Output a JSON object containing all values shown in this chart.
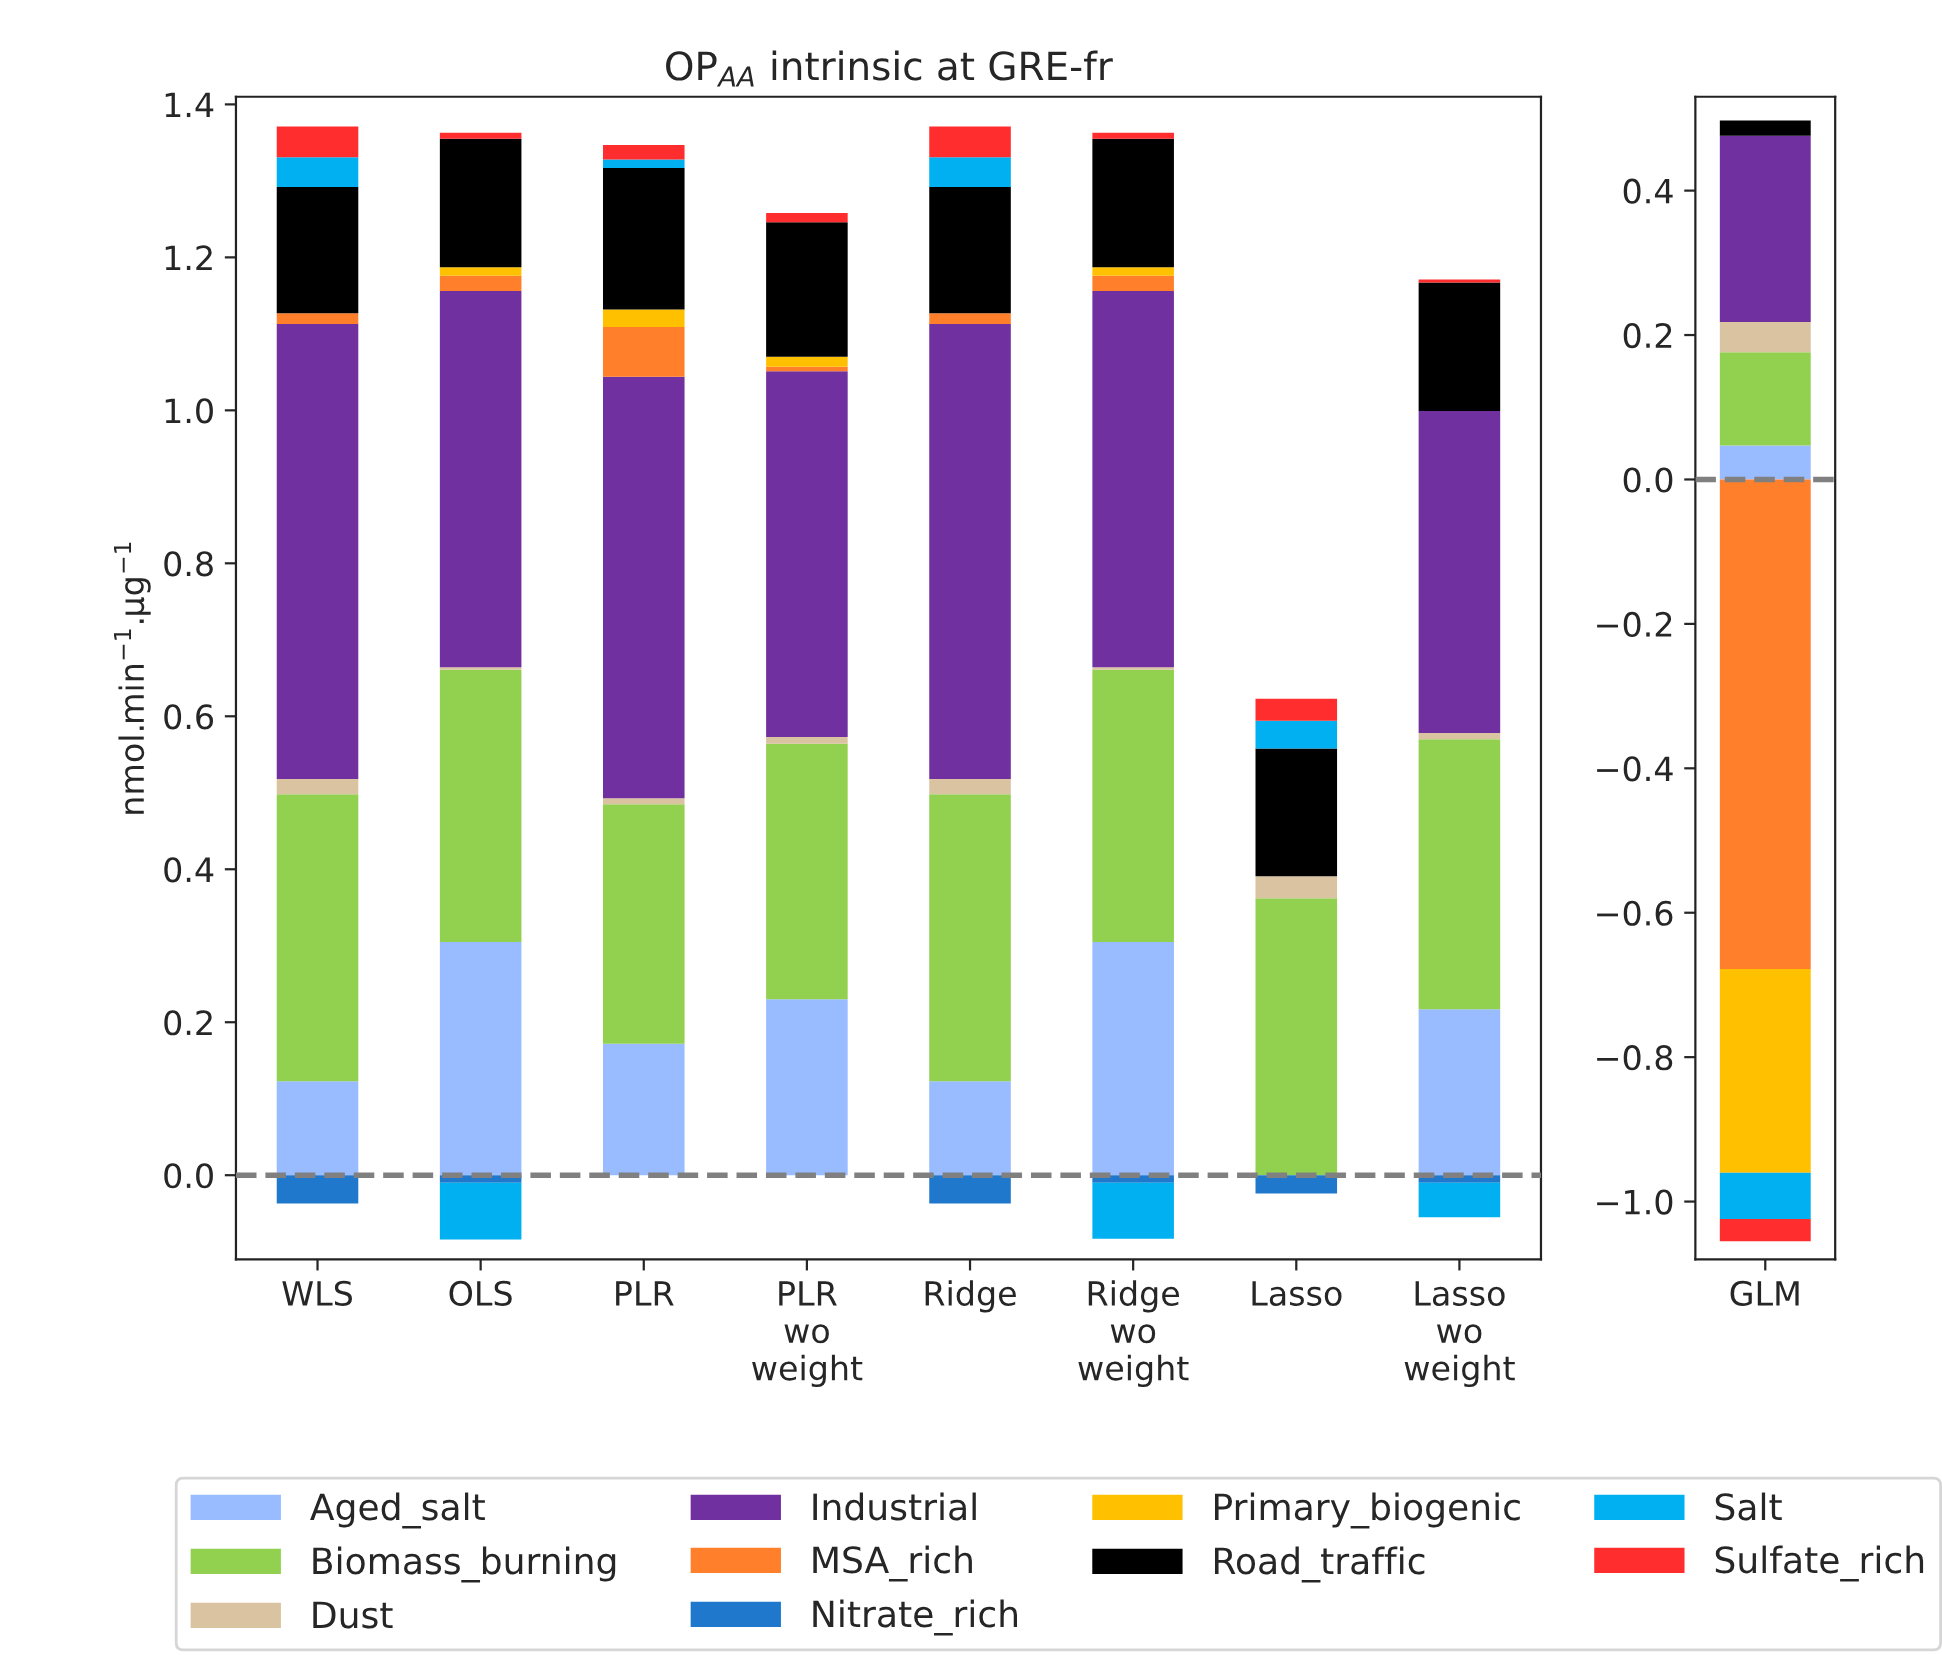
{
  "chart_data": [
    {
      "type": "bar",
      "stacked": true,
      "title": "OP$_{AA}$ intrinsic at GRE-fr",
      "ylabel": "nmol.min$^{−1}$.µg$^{−1}$",
      "categories": [
        "WLS",
        "OLS",
        "PLR",
        "PLR\nwo\nweight",
        "Ridge",
        "Ridge\nwo\nweight",
        "Lasso",
        "Lasso\nwo\nweight"
      ],
      "ylim": [
        -0.11,
        1.41
      ],
      "yticks": [
        {
          "value": 0.0,
          "label": "0.0"
        },
        {
          "value": 0.2,
          "label": "0.2"
        },
        {
          "value": 0.4,
          "label": "0.4"
        },
        {
          "value": 0.6,
          "label": "0.6"
        },
        {
          "value": 0.8,
          "label": "0.8"
        },
        {
          "value": 1.0,
          "label": "1.0"
        },
        {
          "value": 1.2,
          "label": "1.2"
        },
        {
          "value": 1.4,
          "label": "1.4"
        }
      ],
      "grid": false,
      "legend": "bottom",
      "ref_lines": [
        {
          "axis": "y",
          "value": 0,
          "color": "#808080",
          "line_style": "dashed"
        }
      ],
      "series": [
        {
          "name": "Aged_salt",
          "color": "#99bbff",
          "values": [
            0.123,
            0.305,
            0.172,
            0.23,
            0.123,
            0.305,
            0,
            0.217
          ]
        },
        {
          "name": "Biomass_burning",
          "color": "#92d050",
          "values": [
            0.375,
            0.356,
            0.313,
            0.334,
            0.375,
            0.356,
            0.362,
            0.353
          ]
        },
        {
          "name": "Dust",
          "color": "#d9c3a0",
          "values": [
            0.02,
            0.003,
            0.008,
            0.009,
            0.02,
            0.003,
            0.029,
            0.008
          ]
        },
        {
          "name": "Industrial",
          "color": "#7030a0",
          "values": [
            0.595,
            0.492,
            0.551,
            0.478,
            0.595,
            0.492,
            0,
            0.421
          ]
        },
        {
          "name": "MSA_rich",
          "color": "#ff7f2a",
          "values": [
            0.014,
            0.02,
            0.065,
            0.006,
            0.014,
            0.02,
            0,
            0
          ]
        },
        {
          "name": "Nitrate_rich",
          "color": "#2078cc",
          "values": [
            -0.037,
            -0.01,
            0,
            0,
            -0.037,
            -0.01,
            -0.024,
            -0.01
          ]
        },
        {
          "name": "Primary_biogenic",
          "color": "#ffc000",
          "values": [
            0,
            0.011,
            0.023,
            0.013,
            0,
            0.011,
            0,
            0
          ]
        },
        {
          "name": "Road_traffic",
          "color": "#000000",
          "values": [
            0.165,
            0.168,
            0.185,
            0.176,
            0.165,
            0.168,
            0.167,
            0.168
          ]
        },
        {
          "name": "Salt",
          "color": "#00b0f0",
          "values": [
            0.039,
            -0.074,
            0.011,
            0,
            0.039,
            -0.073,
            0.036,
            -0.045
          ]
        },
        {
          "name": "Sulfate_rich",
          "color": "#ff2d2d",
          "values": [
            0.04,
            0.008,
            0.019,
            0.012,
            0.04,
            0.008,
            0.029,
            0.004
          ]
        }
      ]
    },
    {
      "type": "bar",
      "stacked": true,
      "categories": [
        "GLM"
      ],
      "ylim": [
        -1.08,
        0.53
      ],
      "yticks": [
        {
          "value": -1.0,
          "label": "−1.0"
        },
        {
          "value": -0.8,
          "label": "−0.8"
        },
        {
          "value": -0.6,
          "label": "−0.6"
        },
        {
          "value": -0.4,
          "label": "−0.4"
        },
        {
          "value": -0.2,
          "label": "−0.2"
        },
        {
          "value": 0.0,
          "label": "0.0"
        },
        {
          "value": 0.2,
          "label": "0.2"
        },
        {
          "value": 0.4,
          "label": "0.4"
        }
      ],
      "grid": false,
      "ref_lines": [
        {
          "axis": "y",
          "value": 0,
          "color": "#808080",
          "line_style": "dashed"
        }
      ],
      "series": [
        {
          "color": "#99bbff",
          "values": [
            0.047
          ]
        },
        {
          "color": "#92d050",
          "values": [
            0.129
          ]
        },
        {
          "color": "#d9c3a0",
          "values": [
            0.042
          ]
        },
        {
          "color": "#7030a0",
          "values": [
            0.258
          ]
        },
        {
          "color": "#ff7f2a",
          "values": [
            -0.678
          ]
        },
        {
          "color": "#2078cc",
          "values": [
            0
          ]
        },
        {
          "color": "#ffc000",
          "values": [
            -0.282
          ]
        },
        {
          "color": "#000000",
          "values": [
            0.021
          ]
        },
        {
          "color": "#00b0f0",
          "values": [
            -0.064
          ]
        },
        {
          "color": "#ff2d2d",
          "values": [
            -0.031
          ]
        }
      ]
    }
  ]
}
